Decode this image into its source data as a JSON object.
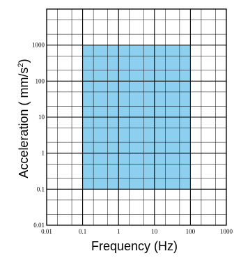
{
  "chart_data": {
    "type": "area",
    "title": "",
    "xlabel": "Frequency (Hz)",
    "ylabel_main": "Acceleration ( mm/s",
    "ylabel_sup": "2",
    "ylabel_close": ")",
    "xscale": "log",
    "yscale": "log",
    "xlim": [
      0.01,
      1000
    ],
    "ylim": [
      0.01,
      10000
    ],
    "x_ticks": [
      {
        "value": 0.01,
        "label": "0.01"
      },
      {
        "value": 0.1,
        "label": "0.1"
      },
      {
        "value": 1,
        "label": "1"
      },
      {
        "value": 10,
        "label": "10"
      },
      {
        "value": 100,
        "label": "100"
      },
      {
        "value": 1000,
        "label": "1000"
      }
    ],
    "y_ticks": [
      {
        "value": 0.01,
        "label": "0.01"
      },
      {
        "value": 0.1,
        "label": "0.1"
      },
      {
        "value": 1,
        "label": "1"
      },
      {
        "value": 10,
        "label": "10"
      },
      {
        "value": 100,
        "label": "100"
      },
      {
        "value": 1000,
        "label": "1000"
      }
    ],
    "region": {
      "x": [
        0.1,
        100
      ],
      "y": [
        0.1,
        1000
      ]
    },
    "grid": true,
    "region_color": "#8ccfee",
    "grid_color": "#000000"
  }
}
